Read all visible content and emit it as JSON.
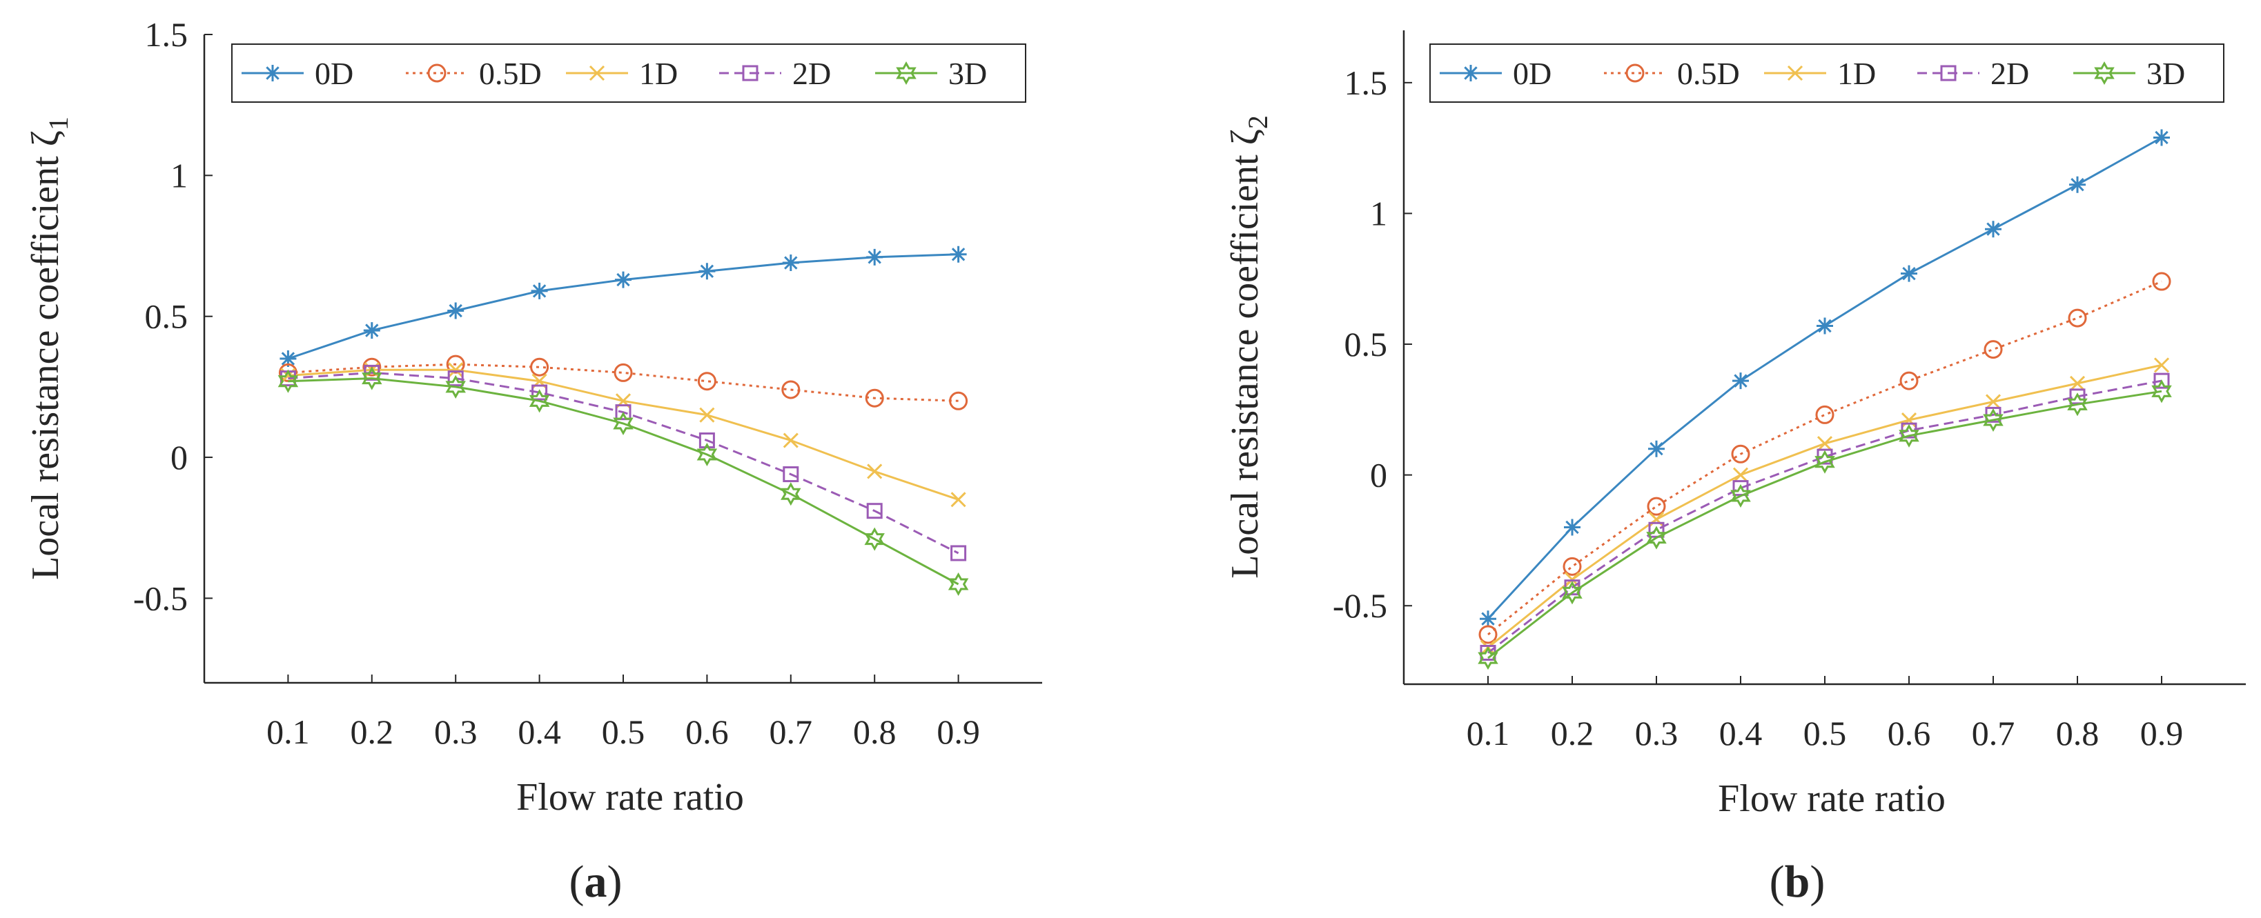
{
  "chart_data": [
    {
      "type": "line",
      "panel_label": "(a)",
      "panel_letter": "a",
      "xlabel": "Flow rate ratio",
      "ylabel": "Local resistance coefficient ζ",
      "ylabel_subscript": "1",
      "xlim": [
        0,
        1.0
      ],
      "ylim": [
        -0.8,
        1.5
      ],
      "xticks": [
        0.1,
        0.2,
        0.3,
        0.4,
        0.5,
        0.6,
        0.7,
        0.8,
        0.9
      ],
      "xtick_labels": [
        "0.1",
        "0.2",
        "0.3",
        "0.4",
        "0.5",
        "0.6",
        "0.7",
        "0.8",
        "0.9"
      ],
      "yticks": [
        -0.5,
        0,
        0.5,
        1,
        1.5
      ],
      "ytick_labels": [
        "-0.5",
        "0",
        "0.5",
        "1",
        "1.5"
      ],
      "grid": false,
      "legend_position": "top",
      "x": [
        0.1,
        0.2,
        0.3,
        0.4,
        0.5,
        0.6,
        0.7,
        0.8,
        0.9
      ],
      "series": [
        {
          "name": "0D",
          "color": "#3a87c1",
          "marker": "asterisk",
          "dash": "solid",
          "values": [
            0.35,
            0.45,
            0.52,
            0.59,
            0.63,
            0.66,
            0.69,
            0.71,
            0.72
          ]
        },
        {
          "name": "0.5D",
          "color": "#e0683a",
          "marker": "circle",
          "dash": "dotted",
          "values": [
            0.3,
            0.32,
            0.33,
            0.32,
            0.3,
            0.27,
            0.24,
            0.21,
            0.2
          ]
        },
        {
          "name": "1D",
          "color": "#f0c050",
          "marker": "x",
          "dash": "solid",
          "values": [
            0.29,
            0.31,
            0.31,
            0.27,
            0.2,
            0.15,
            0.06,
            -0.05,
            -0.15
          ]
        },
        {
          "name": "2D",
          "color": "#9b5bb5",
          "marker": "square",
          "dash": "dashed",
          "values": [
            0.28,
            0.3,
            0.28,
            0.23,
            0.16,
            0.06,
            -0.06,
            -0.19,
            -0.34
          ]
        },
        {
          "name": "3D",
          "color": "#6cb33f",
          "marker": "hexagram",
          "dash": "solid",
          "values": [
            0.27,
            0.28,
            0.25,
            0.2,
            0.12,
            0.01,
            -0.13,
            -0.29,
            -0.45
          ]
        }
      ]
    },
    {
      "type": "line",
      "panel_label": "(b)",
      "panel_letter": "b",
      "xlabel": "Flow rate ratio",
      "ylabel": "Local resistance coefficient ζ",
      "ylabel_subscript": "2",
      "xlim": [
        0,
        1.0
      ],
      "ylim": [
        -0.8,
        1.7
      ],
      "xticks": [
        0.1,
        0.2,
        0.3,
        0.4,
        0.5,
        0.6,
        0.7,
        0.8,
        0.9
      ],
      "xtick_labels": [
        "0.1",
        "0.2",
        "0.3",
        "0.4",
        "0.5",
        "0.6",
        "0.7",
        "0.8",
        "0.9"
      ],
      "yticks": [
        -0.5,
        0,
        0.5,
        1,
        1.5
      ],
      "ytick_labels": [
        "-0.5",
        "0",
        "0.5",
        "1",
        "1.5"
      ],
      "grid": false,
      "legend_position": "top",
      "x": [
        0.1,
        0.2,
        0.3,
        0.4,
        0.5,
        0.6,
        0.7,
        0.8,
        0.9
      ],
      "series": [
        {
          "name": "0D",
          "color": "#3a87c1",
          "marker": "asterisk",
          "dash": "solid",
          "values": [
            -0.55,
            -0.2,
            0.1,
            0.36,
            0.57,
            0.77,
            0.94,
            1.11,
            1.29
          ]
        },
        {
          "name": "0.5D",
          "color": "#e0683a",
          "marker": "circle",
          "dash": "dotted",
          "values": [
            -0.61,
            -0.35,
            -0.12,
            0.08,
            0.23,
            0.36,
            0.48,
            0.6,
            0.74
          ]
        },
        {
          "name": "1D",
          "color": "#f0c050",
          "marker": "x",
          "dash": "solid",
          "values": [
            -0.66,
            -0.4,
            -0.17,
            0.0,
            0.12,
            0.21,
            0.28,
            0.35,
            0.42
          ]
        },
        {
          "name": "2D",
          "color": "#9b5bb5",
          "marker": "square",
          "dash": "dashed",
          "values": [
            -0.68,
            -0.43,
            -0.21,
            -0.05,
            0.07,
            0.17,
            0.23,
            0.3,
            0.36
          ]
        },
        {
          "name": "3D",
          "color": "#6cb33f",
          "marker": "hexagram",
          "dash": "solid",
          "values": [
            -0.7,
            -0.45,
            -0.24,
            -0.08,
            0.05,
            0.15,
            0.21,
            0.27,
            0.32
          ]
        }
      ]
    }
  ]
}
